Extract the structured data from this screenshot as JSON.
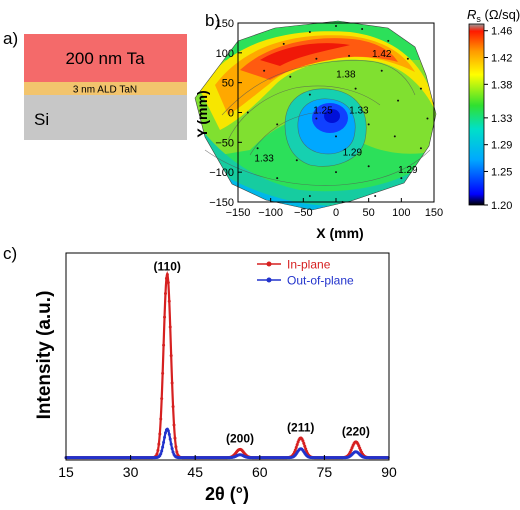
{
  "panel_a": {
    "label": "a)",
    "layers": [
      {
        "text": "200 nm Ta",
        "color": "#f46a6a"
      },
      {
        "text": "3 nm ALD TaN",
        "color": "#f2c46d"
      },
      {
        "text": "Si",
        "color": "#c7c7c7"
      }
    ]
  },
  "panel_b": {
    "label": "b)"
  },
  "panel_c": {
    "label": "c)"
  },
  "chart_data": [
    {
      "type": "heatmap",
      "xlabel": "X (mm)",
      "ylabel": "Y (mm)",
      "xlim": [
        -150,
        150
      ],
      "ylim": [
        -150,
        150
      ],
      "xticks": [
        "−150",
        "−100",
        "−50",
        "0",
        "50",
        "100",
        "150"
      ],
      "yticks": [
        "150",
        "100",
        "50",
        "0",
        "−50",
        "−100",
        "−150"
      ],
      "contour_labels": [
        {
          "text": "1.42",
          "x": 70,
          "y": 100
        },
        {
          "text": "1.38",
          "x": 15,
          "y": 65
        },
        {
          "text": "1.25",
          "x": -20,
          "y": 5
        },
        {
          "text": "1.33",
          "x": 35,
          "y": 5
        },
        {
          "text": "1.29",
          "x": 25,
          "y": -65
        },
        {
          "text": "1.33",
          "x": -110,
          "y": -75
        },
        {
          "text": "1.29",
          "x": 110,
          "y": -95
        }
      ],
      "colorbar": {
        "title_main": "R",
        "title_sub": "s",
        "title_unit": " (Ω/sq)",
        "min": 1.2,
        "max": 1.47,
        "ticks": [
          "1.46",
          "1.42",
          "1.38",
          "1.33",
          "1.29",
          "1.25",
          "1.20"
        ],
        "tick_values": [
          1.46,
          1.42,
          1.38,
          1.33,
          1.29,
          1.25,
          1.2
        ]
      }
    },
    {
      "type": "line",
      "xlabel": "2θ (°)",
      "ylabel": "Intensity (a.u.)",
      "xlim": [
        15,
        90
      ],
      "ylim": [
        0,
        1.05
      ],
      "xticks": [
        15,
        30,
        45,
        60,
        75,
        90
      ],
      "legend": "top-right",
      "series": [
        {
          "name": "In-plane",
          "color": "#d62020",
          "peaks": [
            {
              "x": 38.5,
              "h": 0.93,
              "w": 0.85
            },
            {
              "x": 55.4,
              "h": 0.042,
              "w": 0.9
            },
            {
              "x": 69.5,
              "h": 0.1,
              "w": 0.9
            },
            {
              "x": 82.3,
              "h": 0.08,
              "w": 0.9
            }
          ]
        },
        {
          "name": "Out-of-plane",
          "color": "#2233cc",
          "peaks": [
            {
              "x": 38.5,
              "h": 0.145,
              "w": 0.75
            },
            {
              "x": 55.4,
              "h": 0.015,
              "w": 0.8
            },
            {
              "x": 69.5,
              "h": 0.045,
              "w": 0.8
            },
            {
              "x": 82.3,
              "h": 0.03,
              "w": 0.8
            }
          ]
        }
      ],
      "annotations": [
        {
          "text": "(110)",
          "x": 38.5,
          "y": 0.96
        },
        {
          "text": "(200)",
          "x": 55.4,
          "y": 0.09
        },
        {
          "text": "(211)",
          "x": 69.5,
          "y": 0.145
        },
        {
          "text": "(220)",
          "x": 82.3,
          "y": 0.125
        }
      ]
    }
  ]
}
